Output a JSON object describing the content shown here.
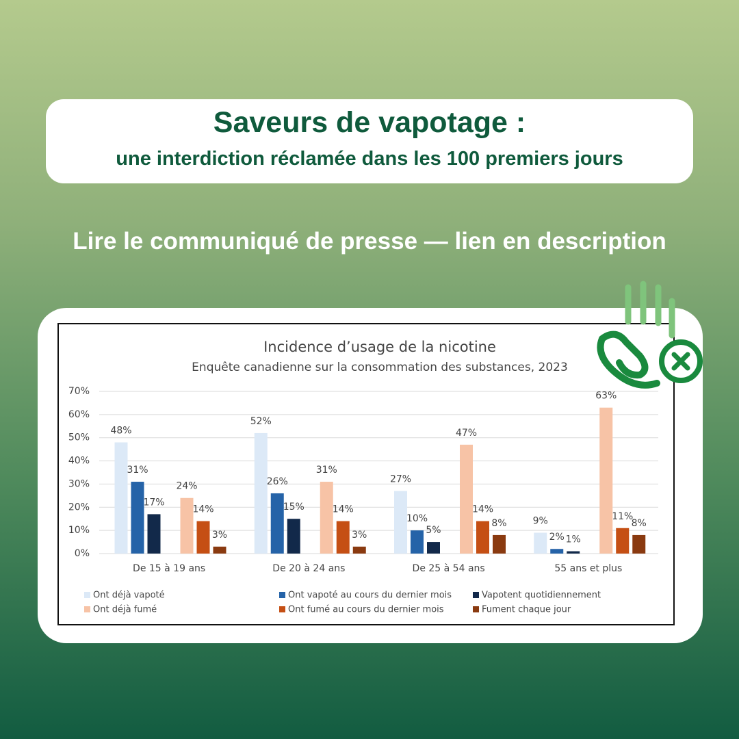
{
  "header": {
    "title": "Saveurs de vapotage :",
    "subtitle": "une interdiction réclamée dans les 100 premiers jours"
  },
  "cta": "Lire le communiqué de presse — lien en description",
  "chart_data": {
    "type": "bar",
    "title": "Incidence d’usage de la nicotine",
    "subtitle": "Enquête canadienne sur la consommation des substances, 2023",
    "categories": [
      "De 15 à 19 ans",
      "De 20 à 24 ans",
      "De 25 à 54 ans",
      "55 ans et plus"
    ],
    "series": [
      {
        "name": "Ont déjà vapoté",
        "color": "#dce9f7",
        "values": [
          48,
          52,
          27,
          9
        ],
        "value_labels": [
          "48%",
          "52%",
          "27%",
          "9%"
        ]
      },
      {
        "name": "Ont vapoté au cours du dernier mois",
        "color": "#2563a8",
        "values": [
          31,
          26,
          10,
          2
        ],
        "value_labels": [
          "31%",
          "26%",
          "10%",
          "2%"
        ]
      },
      {
        "name": "Vapotent quotidiennement",
        "color": "#12294a",
        "values": [
          17,
          15,
          5,
          1
        ],
        "value_labels": [
          "17%",
          "15%",
          "5%",
          "1%"
        ]
      },
      {
        "name": "Ont déjà fumé",
        "color": "#f7c3a6",
        "values": [
          24,
          31,
          47,
          63
        ],
        "value_labels": [
          "24%",
          "31%",
          "47%",
          "63%"
        ]
      },
      {
        "name": "Ont fumé au cours du dernier mois",
        "color": "#c54f14",
        "values": [
          14,
          14,
          14,
          11
        ],
        "value_labels": [
          "14%",
          "14%",
          "14%",
          "11%"
        ]
      },
      {
        "name": "Fument chaque jour",
        "color": "#8a3a10",
        "values": [
          3,
          3,
          8,
          8
        ],
        "value_labels": [
          "3%",
          "3%",
          "8%",
          "8%"
        ]
      }
    ],
    "ylim": [
      0,
      70
    ],
    "yticks": [
      {
        "value": 0,
        "label": "0%"
      },
      {
        "value": 10,
        "label": "10%"
      },
      {
        "value": 20,
        "label": "20%"
      },
      {
        "value": 30,
        "label": "30%"
      },
      {
        "value": 40,
        "label": "40%"
      },
      {
        "value": 50,
        "label": "50%"
      },
      {
        "value": 60,
        "label": "60%"
      },
      {
        "value": 70,
        "label": "70%"
      }
    ],
    "grid": true
  }
}
